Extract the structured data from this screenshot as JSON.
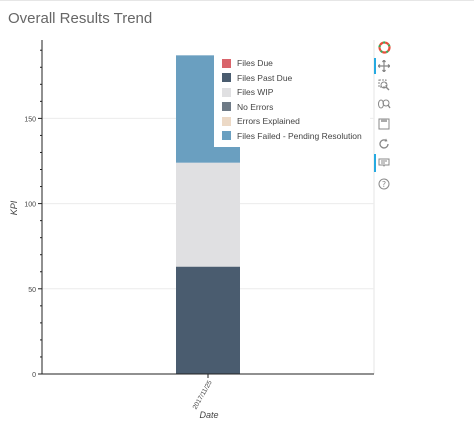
{
  "panel": {
    "title": "Overall Results Trend"
  },
  "chart_data": {
    "type": "bar",
    "stacked": true,
    "categories": [
      "2017/11/25"
    ],
    "series": [
      {
        "name": "Files Due",
        "color": "#d9646b",
        "values": [
          0
        ]
      },
      {
        "name": "Files Past Due",
        "color": "#4a5c6f",
        "values": [
          63
        ]
      },
      {
        "name": "Files WIP",
        "color": "#e0e0e2",
        "values": [
          61
        ]
      },
      {
        "name": "No Errors",
        "color": "#6e7a86",
        "values": [
          0
        ]
      },
      {
        "name": "Errors Explained",
        "color": "#ecd9c6",
        "values": [
          0
        ]
      },
      {
        "name": "Files Failed - Pending Resolution",
        "color": "#6a9fc0",
        "values": [
          63
        ]
      }
    ],
    "xlabel": "Date",
    "ylabel": "KPI",
    "ylim": [
      0,
      196
    ],
    "yticks": [
      0,
      50,
      100,
      150
    ],
    "grid": true,
    "legend_position": "top-right"
  },
  "toolbar": {
    "tools": [
      {
        "icon": "bokeh-logo-icon"
      },
      {
        "icon": "pan-icon"
      },
      {
        "icon": "box-zoom-icon"
      },
      {
        "icon": "wheel-zoom-icon"
      },
      {
        "icon": "save-icon"
      },
      {
        "icon": "reset-icon"
      },
      {
        "icon": "hover-icon"
      },
      {
        "icon": "help-icon"
      }
    ]
  }
}
